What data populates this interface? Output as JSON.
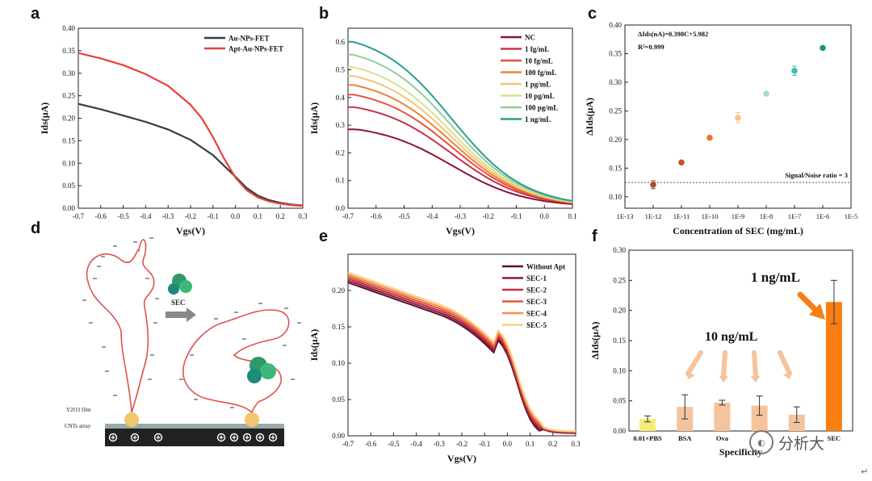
{
  "panels": {
    "a": {
      "label": "a"
    },
    "b": {
      "label": "b"
    },
    "c": {
      "label": "c"
    },
    "d": {
      "label": "d",
      "sec_label": "SEC",
      "film_label": "Y2O3 film",
      "cnt_label": "CNTs array"
    },
    "e": {
      "label": "e"
    },
    "f": {
      "label": "f",
      "ann_big": "1 ng/mL",
      "ann_small": "10 ng/mL"
    }
  },
  "watermark": {
    "icon": "wechat-icon",
    "text": "分析大"
  },
  "colors": {
    "red": "#e8413c",
    "gray": "#3a3a3a",
    "teal": "#2aa59a",
    "orange": "#f97f12",
    "light_orange": "#f5c39c",
    "yellow": "#f3ec7a"
  },
  "chart_data": [
    {
      "id": "a",
      "type": "line",
      "title": "",
      "xlabel": "Vgs(V)",
      "ylabel": "Ids(μA)",
      "xlim": [
        -0.7,
        0.3
      ],
      "ylim": [
        0,
        0.4
      ],
      "xticks": [
        -0.7,
        -0.6,
        -0.5,
        -0.4,
        -0.3,
        -0.2,
        -0.1,
        0.0,
        0.1,
        0.2,
        0.3
      ],
      "yticks": [
        0,
        0.05,
        0.1,
        0.15,
        0.2,
        0.25,
        0.3,
        0.35,
        0.4
      ],
      "xtick_labels": [
        "-0.7",
        "-0.6",
        "-0.5",
        "-0.4",
        "-0.3",
        "-0.2",
        "-0.1",
        "0.0",
        "0.1",
        "0.2",
        "0.3"
      ],
      "ytick_labels": [
        "0.00",
        "0.05",
        "0.10",
        "0.15",
        "0.20",
        "0.25",
        "0.30",
        "0.35",
        "0.40"
      ],
      "legend": "top-left",
      "series": [
        {
          "name": "Au-NPs-FET",
          "color": "#3a3a3a",
          "x": [
            -0.7,
            -0.6,
            -0.5,
            -0.4,
            -0.3,
            -0.2,
            -0.1,
            0.0,
            0.05,
            0.1,
            0.15,
            0.2,
            0.25,
            0.3
          ],
          "y": [
            0.232,
            0.22,
            0.206,
            0.192,
            0.175,
            0.152,
            0.118,
            0.07,
            0.045,
            0.028,
            0.018,
            0.012,
            0.008,
            0.006
          ]
        },
        {
          "name": "Apt-Au-NPs-FET",
          "color": "#e8413c",
          "x": [
            -0.7,
            -0.6,
            -0.5,
            -0.4,
            -0.3,
            -0.2,
            -0.15,
            -0.1,
            -0.05,
            0.0,
            0.05,
            0.1,
            0.15,
            0.2,
            0.25,
            0.3
          ],
          "y": [
            0.345,
            0.333,
            0.318,
            0.298,
            0.272,
            0.23,
            0.2,
            0.158,
            0.11,
            0.068,
            0.04,
            0.024,
            0.015,
            0.01,
            0.007,
            0.005
          ]
        }
      ]
    },
    {
      "id": "b",
      "type": "line",
      "title": "",
      "xlabel": "Vgs(V)",
      "ylabel": "Ids(μA)",
      "xlim": [
        -0.7,
        0.1
      ],
      "ylim": [
        0,
        0.65
      ],
      "xticks": [
        -0.7,
        -0.6,
        -0.5,
        -0.4,
        -0.3,
        -0.2,
        -0.1,
        0.0,
        0.1
      ],
      "yticks": [
        0,
        0.1,
        0.2,
        0.3,
        0.4,
        0.5,
        0.6
      ],
      "xtick_labels": [
        "-0.7",
        "-0.6",
        "-0.5",
        "-0.4",
        "-0.3",
        "-0.2",
        "-0.1",
        "0.0",
        "0.1"
      ],
      "ytick_labels": [
        "0.0",
        "0.1",
        "0.2",
        "0.3",
        "0.4",
        "0.5",
        "0.6"
      ],
      "legend": "top-right",
      "series": [
        {
          "name": "NC",
          "color": "#8b1538",
          "start": 0.285
        },
        {
          "name": "1 fg/mL",
          "color": "#c2344a",
          "start": 0.365
        },
        {
          "name": "10 fg/mL",
          "color": "#e8503f",
          "start": 0.41
        },
        {
          "name": "100 fg/mL",
          "color": "#f0803a",
          "start": 0.445
        },
        {
          "name": "1 pg/mL",
          "color": "#f7c374",
          "start": 0.478
        },
        {
          "name": "10 pg/mL",
          "color": "#d9e08c",
          "start": 0.51
        },
        {
          "name": "100 pg/mL",
          "color": "#8fcf98",
          "start": 0.555
        },
        {
          "name": "1 ng/mL",
          "color": "#2a9d90",
          "start": 0.602
        }
      ]
    },
    {
      "id": "c",
      "type": "scatter",
      "title": "",
      "xlabel": "Concentration of SEC (mg/mL)",
      "ylabel": "ΔIds(μA)",
      "xlim": [
        -13,
        -5
      ],
      "ylim": [
        0.08,
        0.4
      ],
      "xticks": [
        -13,
        -12,
        -11,
        -10,
        -9,
        -8,
        -7,
        -6,
        -5
      ],
      "yticks": [
        0.1,
        0.15,
        0.2,
        0.25,
        0.3,
        0.35,
        0.4
      ],
      "xtick_labels": [
        "1E-13",
        "1E-12",
        "1E-11",
        "1E-10",
        "1E-9",
        "1E-8",
        "1E-7",
        "1E-6",
        "1E-5"
      ],
      "ytick_labels": [
        "0.10",
        "0.15",
        "0.20",
        "0.25",
        "0.30",
        "0.35",
        "0.40"
      ],
      "equation": "ΔIds(nA)=0.398C+5.982",
      "r2": "R²=0.999",
      "threshold": {
        "y": 0.125,
        "label": "Signal/Noise ratio = 3"
      },
      "points": [
        {
          "x": -12,
          "y": 0.121,
          "err": 0.007,
          "color": "#a0522d"
        },
        {
          "x": -11,
          "y": 0.16,
          "err": 0.0,
          "color": "#c8501e"
        },
        {
          "x": -10,
          "y": 0.203,
          "err": 0.0,
          "color": "#e8732c"
        },
        {
          "x": -9,
          "y": 0.238,
          "err": 0.009,
          "color": "#f7c48c"
        },
        {
          "x": -8,
          "y": 0.28,
          "err": 0.0,
          "color": "#a8dcc8"
        },
        {
          "x": -7,
          "y": 0.32,
          "err": 0.008,
          "color": "#38bfb0"
        },
        {
          "x": -6,
          "y": 0.36,
          "err": 0.0,
          "color": "#16968a"
        }
      ]
    },
    {
      "id": "e",
      "type": "line",
      "title": "",
      "xlabel": "Vgs(V)",
      "ylabel": "Ids(μA)",
      "xlim": [
        -0.7,
        0.3
      ],
      "ylim": [
        0,
        0.25
      ],
      "xticks": [
        -0.7,
        -0.6,
        -0.5,
        -0.4,
        -0.3,
        -0.2,
        -0.1,
        0.0,
        0.1,
        0.2,
        0.3
      ],
      "yticks": [
        0,
        0.05,
        0.1,
        0.15,
        0.2
      ],
      "xtick_labels": [
        "-0.7",
        "-0.6",
        "-0.5",
        "-0.4",
        "-0.3",
        "-0.2",
        "-0.1",
        "0.0",
        "0.1",
        "0.2",
        "0.3"
      ],
      "ytick_labels": [
        "0.00",
        "0.05",
        "0.10",
        "0.15",
        "0.20"
      ],
      "legend": "top-right",
      "series": [
        {
          "name": "Without Apt",
          "color": "#5a1030"
        },
        {
          "name": "SEC-1",
          "color": "#8b1a3a"
        },
        {
          "name": "SEC-2",
          "color": "#c42e48"
        },
        {
          "name": "SEC-3",
          "color": "#e25535"
        },
        {
          "name": "SEC-4",
          "color": "#f28f4e"
        },
        {
          "name": "SEC-5",
          "color": "#fbcf88"
        }
      ]
    },
    {
      "id": "f",
      "type": "bar",
      "title": "",
      "xlabel": "Specificity",
      "ylabel": "ΔIds(μA)",
      "ylim": [
        0,
        0.3
      ],
      "yticks": [
        0,
        0.05,
        0.1,
        0.15,
        0.2,
        0.25,
        0.3
      ],
      "ytick_labels": [
        "0.00",
        "0.05",
        "0.10",
        "0.15",
        "0.20",
        "0.25",
        "0.30"
      ],
      "categories": [
        "0.01×PBS",
        "BSA",
        "Ova",
        "",
        "",
        "SEC"
      ],
      "values": [
        0.02,
        0.04,
        0.047,
        0.042,
        0.027,
        0.214
      ],
      "errors": [
        0.005,
        0.02,
        0.004,
        0.016,
        0.013,
        0.036
      ],
      "colors": [
        "#f3ec7a",
        "#f5c39c",
        "#f5c39c",
        "#f5c39c",
        "#f5c39c",
        "#f97f12"
      ]
    }
  ]
}
